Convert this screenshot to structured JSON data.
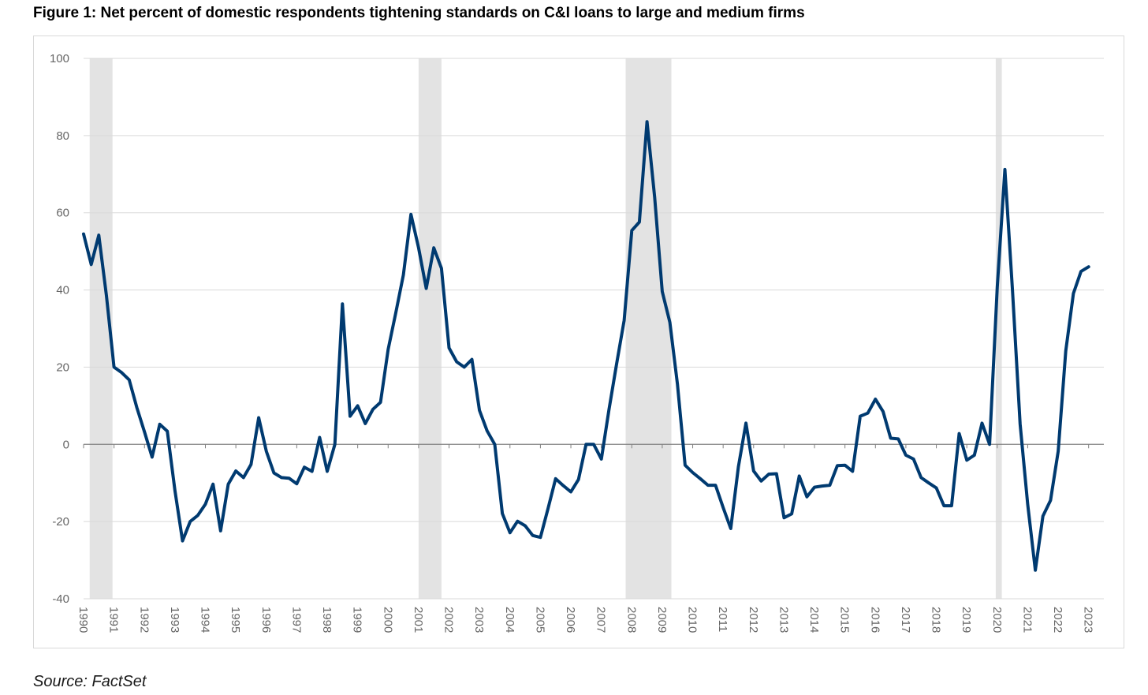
{
  "title": "Figure 1: Net percent of domestic respondents tightening standards on C&I loans to large and medium firms",
  "source": "Source: FactSet",
  "colors": {
    "line": "#003a70",
    "recession": "#e3e3e3",
    "grid": "#d9d9d9",
    "zero": "#808080",
    "tick": "#666666"
  },
  "chart_data": {
    "type": "line",
    "title": "Figure 1: Net percent of domestic respondents tightening standards on C&I loans to large and medium firms",
    "xlabel": "",
    "ylabel": "",
    "xlim": [
      1990.0,
      2023.5
    ],
    "ylim": [
      -40,
      100
    ],
    "y_ticks": [
      -40,
      -20,
      0,
      20,
      40,
      60,
      80,
      100
    ],
    "x_ticks": [
      "1990",
      "1991",
      "1992",
      "1993",
      "1994",
      "1995",
      "1996",
      "1997",
      "1998",
      "1999",
      "2000",
      "2001",
      "2002",
      "2003",
      "2004",
      "2005",
      "2006",
      "2007",
      "2008",
      "2009",
      "2010",
      "2011",
      "2012",
      "2013",
      "2014",
      "2015",
      "2016",
      "2017",
      "2018",
      "2019",
      "2020",
      "2021",
      "2022",
      "2023"
    ],
    "grid": true,
    "recession_periods": [
      [
        1990.2,
        1990.95
      ],
      [
        2001.0,
        2001.75
      ],
      [
        2007.8,
        2009.3
      ],
      [
        2019.95,
        2020.15
      ]
    ],
    "series": [
      {
        "name": "",
        "x": [
          1990.0,
          1990.25,
          1990.5,
          1990.75,
          1991.0,
          1991.25,
          1991.5,
          1991.75,
          1992.0,
          1992.25,
          1992.5,
          1992.75,
          1993.0,
          1993.25,
          1993.5,
          1993.75,
          1994.0,
          1994.25,
          1994.5,
          1994.75,
          1995.0,
          1995.25,
          1995.5,
          1995.75,
          1996.0,
          1996.25,
          1996.5,
          1996.75,
          1997.0,
          1997.25,
          1997.5,
          1997.75,
          1998.0,
          1998.25,
          1998.5,
          1998.75,
          1999.0,
          1999.25,
          1999.5,
          1999.75,
          2000.0,
          2000.25,
          2000.5,
          2000.75,
          2001.0,
          2001.25,
          2001.5,
          2001.75,
          2002.0,
          2002.25,
          2002.5,
          2002.75,
          2003.0,
          2003.25,
          2003.5,
          2003.75,
          2004.0,
          2004.25,
          2004.5,
          2004.75,
          2005.0,
          2005.25,
          2005.5,
          2005.75,
          2006.0,
          2006.25,
          2006.5,
          2006.75,
          2007.0,
          2007.25,
          2007.5,
          2007.75,
          2008.0,
          2008.25,
          2008.5,
          2008.75,
          2009.0,
          2009.25,
          2009.5,
          2009.75,
          2010.0,
          2010.25,
          2010.5,
          2010.75,
          2011.0,
          2011.25,
          2011.5,
          2011.75,
          2012.0,
          2012.25,
          2012.5,
          2012.75,
          2013.0,
          2013.25,
          2013.5,
          2013.75,
          2014.0,
          2014.25,
          2014.5,
          2014.75,
          2015.0,
          2015.25,
          2015.5,
          2015.75,
          2016.0,
          2016.25,
          2016.5,
          2016.75,
          2017.0,
          2017.25,
          2017.5,
          2017.75,
          2018.0,
          2018.25,
          2018.5,
          2018.75,
          2019.0,
          2019.25,
          2019.5,
          2019.75,
          2020.0,
          2020.25,
          2020.5,
          2020.75,
          2021.0,
          2021.25,
          2021.5,
          2021.75,
          2022.0,
          2022.25,
          2022.5,
          2022.75,
          2023.0
        ],
        "values": [
          54.5,
          46.6,
          54.2,
          38.5,
          20.0,
          18.6,
          16.7,
          9.5,
          3.2,
          -3.3,
          5.2,
          3.4,
          -12.0,
          -25.0,
          -20.0,
          -18.4,
          -15.5,
          -10.3,
          -22.4,
          -10.3,
          -6.9,
          -8.6,
          -5.2,
          6.9,
          -1.8,
          -7.4,
          -8.6,
          -8.8,
          -10.2,
          -5.9,
          -7.0,
          1.8,
          -7.0,
          0.0,
          36.4,
          7.3,
          10.0,
          5.4,
          9.1,
          10.9,
          24.6,
          34.0,
          43.9,
          59.6,
          50.9,
          40.4,
          50.9,
          45.6,
          25.0,
          21.4,
          20.0,
          22.0,
          8.8,
          3.5,
          0.0,
          -17.9,
          -22.9,
          -19.9,
          -21.1,
          -23.6,
          -24.1,
          -16.6,
          -8.9,
          -10.7,
          -12.3,
          -9.1,
          0.0,
          0.0,
          -3.8,
          8.9,
          20.8,
          32.1,
          55.4,
          57.6,
          83.6,
          64.0,
          39.6,
          31.6,
          15.6,
          -5.4,
          -7.3,
          -8.9,
          -10.6,
          -10.6,
          -16.4,
          -21.8,
          -5.8,
          5.5,
          -6.9,
          -9.5,
          -7.7,
          -7.6,
          -19.0,
          -18.0,
          -8.2,
          -13.6,
          -11.1,
          -10.8,
          -10.6,
          -5.5,
          -5.4,
          -7.0,
          7.3,
          8.1,
          11.7,
          8.5,
          1.6,
          1.4,
          -2.8,
          -3.8,
          -8.6,
          -10.0,
          -11.3,
          -15.9,
          -15.9,
          2.8,
          -4.1,
          -2.8,
          5.5,
          0.0,
          40.7,
          71.2,
          40.0,
          5.3,
          -15.5,
          -32.6,
          -18.6,
          -14.5,
          -1.8,
          24.2,
          39.1,
          44.8,
          46.0
        ]
      }
    ]
  }
}
